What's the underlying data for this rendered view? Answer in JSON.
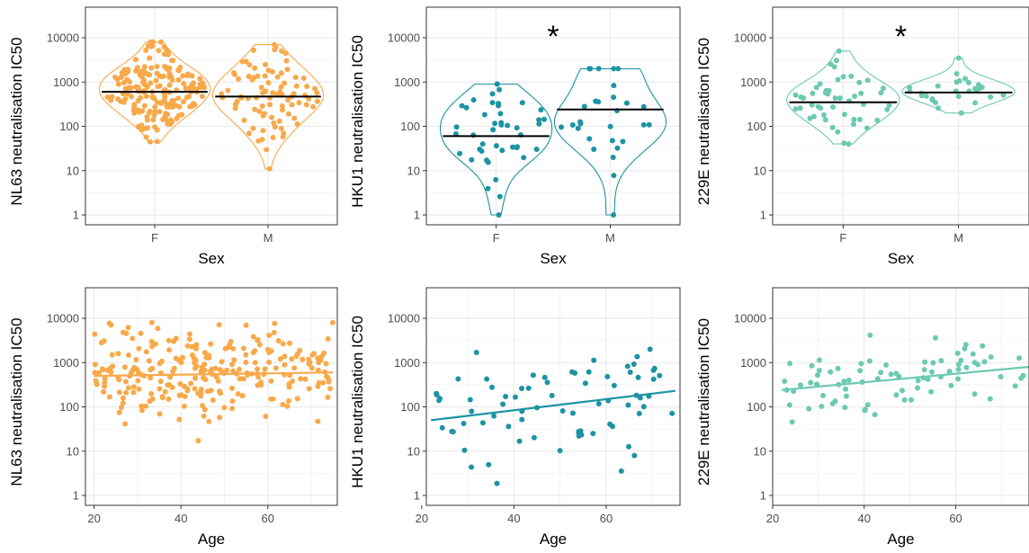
{
  "colors": {
    "NL63": "#f8a94a",
    "HKU1": "#1c93a3",
    "229E": "#6cc9b2",
    "grid": "#ebebeb",
    "frame": "#333333",
    "median": "#000000"
  },
  "chart_data": [
    {
      "id": "nl63-sex",
      "type": "violin",
      "color_key": "NL63",
      "scale": "log10",
      "xlabel": "Sex",
      "ylabel": "NL63 neutralisation IC50",
      "significance": "",
      "categories": [
        "F",
        "M"
      ],
      "ylim": [
        1,
        10000
      ],
      "yticks": [
        1,
        10,
        100,
        1000,
        10000
      ],
      "medians": [
        600,
        470
      ],
      "groups": [
        {
          "name": "F",
          "n": 200,
          "median": 600,
          "range": [
            45,
            8000
          ]
        },
        {
          "name": "M",
          "n": 90,
          "median": 470,
          "range": [
            11,
            7000
          ]
        }
      ]
    },
    {
      "id": "hku1-sex",
      "type": "violin",
      "color_key": "HKU1",
      "scale": "log10",
      "xlabel": "Sex",
      "ylabel": "HKU1 neutralisation IC50",
      "significance": "*",
      "categories": [
        "F",
        "M"
      ],
      "ylim": [
        1,
        10000
      ],
      "yticks": [
        1,
        10,
        100,
        1000,
        10000
      ],
      "medians": [
        60,
        240
      ],
      "groups": [
        {
          "name": "F",
          "n": 45,
          "median": 60,
          "range": [
            1,
            900
          ]
        },
        {
          "name": "M",
          "n": 30,
          "median": 240,
          "range": [
            1,
            2000
          ]
        }
      ]
    },
    {
      "id": "229e-sex",
      "type": "violin",
      "color_key": "229E",
      "scale": "log10",
      "xlabel": "Sex",
      "ylabel": "229E neutralisation IC50",
      "significance": "*",
      "categories": [
        "F",
        "M"
      ],
      "ylim": [
        1,
        10000
      ],
      "yticks": [
        1,
        10,
        100,
        1000,
        10000
      ],
      "medians": [
        350,
        580
      ],
      "groups": [
        {
          "name": "F",
          "n": 50,
          "median": 350,
          "range": [
            40,
            5000
          ]
        },
        {
          "name": "M",
          "n": 28,
          "median": 580,
          "range": [
            200,
            3500
          ]
        }
      ]
    },
    {
      "id": "nl63-age",
      "type": "scatter",
      "color_key": "NL63",
      "scale": "log10",
      "xlabel": "Age",
      "ylabel": "NL63 neutralisation IC50",
      "xlim": [
        18,
        76
      ],
      "xticks": [
        20,
        40,
        60
      ],
      "ylim": [
        1,
        10000
      ],
      "yticks": [
        1,
        10,
        100,
        1000,
        10000
      ],
      "trend": {
        "x": [
          20,
          75
        ],
        "y": [
          500,
          600
        ]
      },
      "n": 260,
      "range": [
        10,
        8000
      ]
    },
    {
      "id": "hku1-age",
      "type": "scatter",
      "color_key": "HKU1",
      "scale": "log10",
      "xlabel": "Age",
      "ylabel": "HKU1 neutralisation IC50",
      "xlim": [
        21,
        76
      ],
      "xticks": [
        20,
        40,
        60
      ],
      "ylim": [
        1,
        10000
      ],
      "yticks": [
        1,
        10,
        100,
        1000,
        10000
      ],
      "trend": {
        "x": [
          22,
          75
        ],
        "y": [
          50,
          230
        ]
      },
      "n": 75,
      "range": [
        1,
        2000
      ]
    },
    {
      "id": "229e-age",
      "type": "scatter",
      "color_key": "229E",
      "scale": "log10",
      "xlabel": "Age",
      "ylabel": "229E neutralisation IC50",
      "xlim": [
        20,
        76
      ],
      "xticks": [
        20,
        40,
        60
      ],
      "ylim": [
        1,
        10000
      ],
      "yticks": [
        1,
        10,
        100,
        1000,
        10000
      ],
      "trend": {
        "x": [
          22,
          76
        ],
        "y": [
          240,
          800
        ]
      },
      "n": 80,
      "range": [
        40,
        5000
      ]
    }
  ]
}
